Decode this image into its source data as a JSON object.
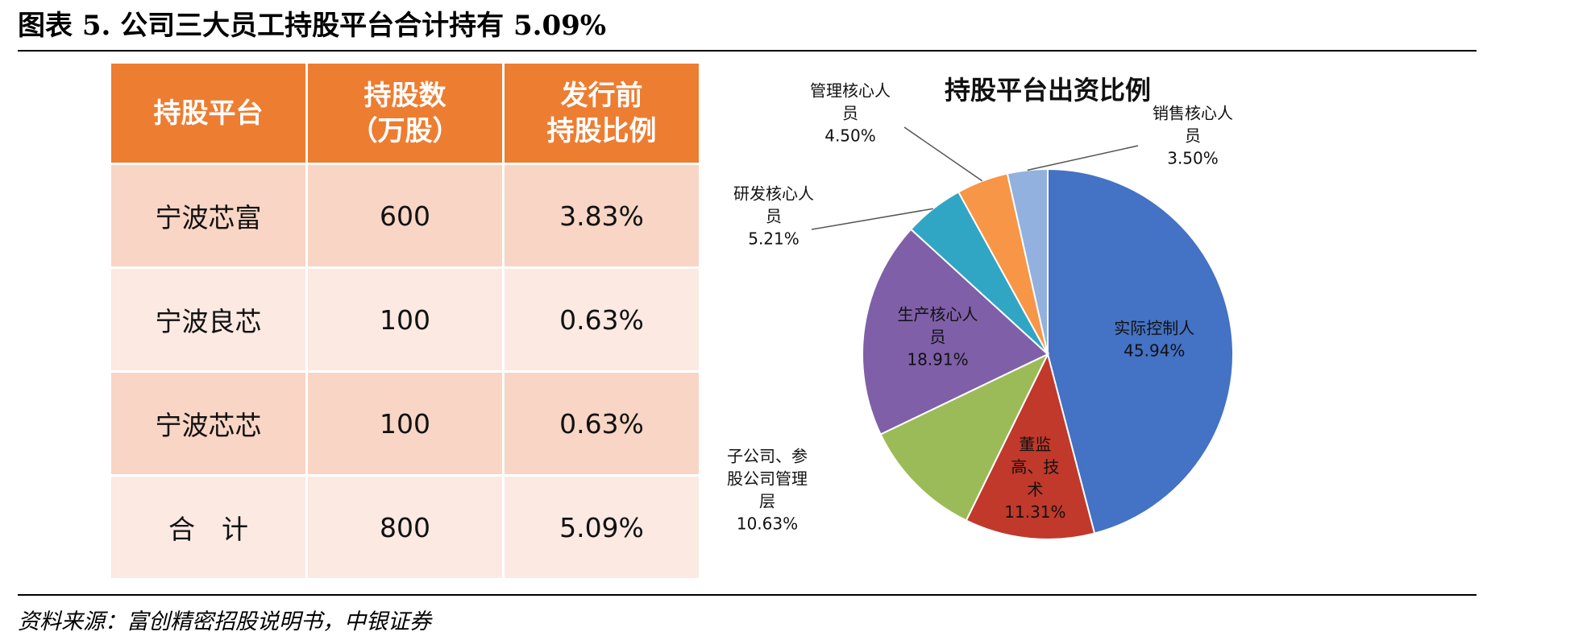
{
  "page_title": "图表 5. 公司三大员工持股平台合计持有 5.09%",
  "table": {
    "headers": [
      {
        "line1": "持股平台",
        "line2": ""
      },
      {
        "line1": "持股数",
        "line2": "（万股）"
      },
      {
        "line1": "发行前",
        "line2": "持股比例"
      }
    ],
    "rows": [
      {
        "platform": "宁波芯富",
        "shares": "600",
        "ratio": "3.83%"
      },
      {
        "platform": "宁波良芯",
        "shares": "100",
        "ratio": "0.63%"
      },
      {
        "platform": "宁波芯芯",
        "shares": "100",
        "ratio": "0.63%"
      },
      {
        "platform": "合　计",
        "shares": "800",
        "ratio": "5.09%"
      }
    ]
  },
  "chart_data": {
    "type": "pie",
    "title": "持股平台出资比例",
    "slices": [
      {
        "label": [
          "实际控制人"
        ],
        "value": 45.94,
        "display": "45.94%",
        "color": "#4472c4"
      },
      {
        "label": [
          "董监",
          "高、技",
          "术"
        ],
        "value": 11.31,
        "display": "11.31%",
        "color": "#c0392b"
      },
      {
        "label": [
          "子公司、参",
          "股公司管理",
          "层"
        ],
        "value": 10.63,
        "display": "10.63%",
        "color": "#9bbb59"
      },
      {
        "label": [
          "生产核心人",
          "员"
        ],
        "value": 18.91,
        "display": "18.91%",
        "color": "#7f5fa8"
      },
      {
        "label": [
          "研发核心人",
          "员"
        ],
        "value": 5.21,
        "display": "5.21%",
        "color": "#31a5c4"
      },
      {
        "label": [
          "管理核心人",
          "员"
        ],
        "value": 4.5,
        "display": "4.50%",
        "color": "#f79646"
      },
      {
        "label": [
          "销售核心人",
          "员"
        ],
        "value": 3.5,
        "display": "3.50%",
        "color": "#93b1de"
      }
    ],
    "legend": "none"
  },
  "source_note": "资料来源：富创精密招股说明书，中银证券"
}
